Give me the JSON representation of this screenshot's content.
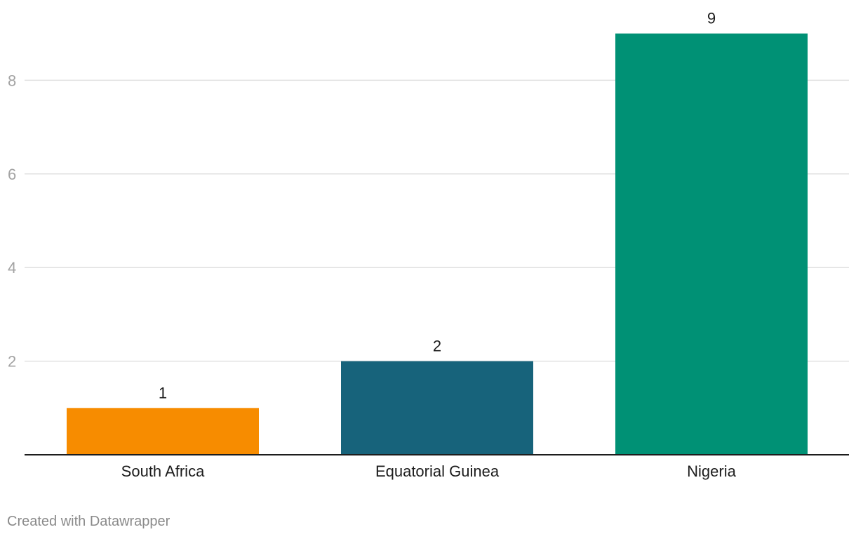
{
  "chart_data": {
    "type": "bar",
    "categories": [
      "South Africa",
      "Equatorial Guinea",
      "Nigeria"
    ],
    "values": [
      1,
      2,
      9
    ],
    "value_labels": [
      "1",
      "2",
      "9"
    ],
    "colors": [
      "#f78c00",
      "#17637b",
      "#009175"
    ],
    "title": "",
    "xlabel": "",
    "ylabel": "",
    "ylim": [
      0,
      9
    ],
    "yticks": [
      2,
      4,
      6,
      8
    ],
    "ytick_labels": [
      "2",
      "4",
      "6",
      "8"
    ],
    "grid": true,
    "legend": "none"
  },
  "footer": {
    "credit": "Created with Datawrapper"
  },
  "style": {
    "grid_color": "#e1e1e1",
    "axis_color": "#1d1d1d"
  }
}
